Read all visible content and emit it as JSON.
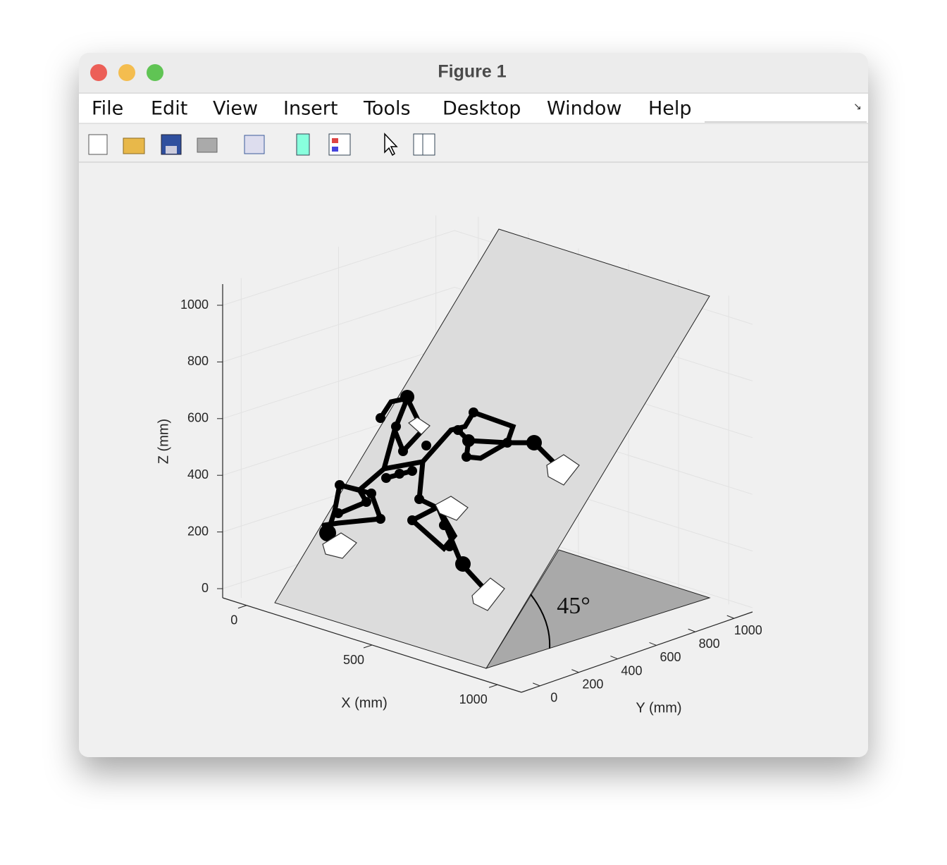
{
  "window": {
    "title": "Figure 1"
  },
  "menu": [
    "File",
    "Edit",
    "View",
    "Insert",
    "Tools",
    "Desktop",
    "Window",
    "Help"
  ],
  "axes": {
    "xlabel": "X (mm)",
    "ylabel": "Y (mm)",
    "zlabel": "Z (mm)",
    "xticks": [
      0,
      500,
      1000
    ],
    "yticks": [
      0,
      200,
      400,
      600,
      800,
      1000
    ],
    "zticks": [
      0,
      200,
      400,
      600,
      800,
      1000
    ],
    "annotation": "45°"
  }
}
